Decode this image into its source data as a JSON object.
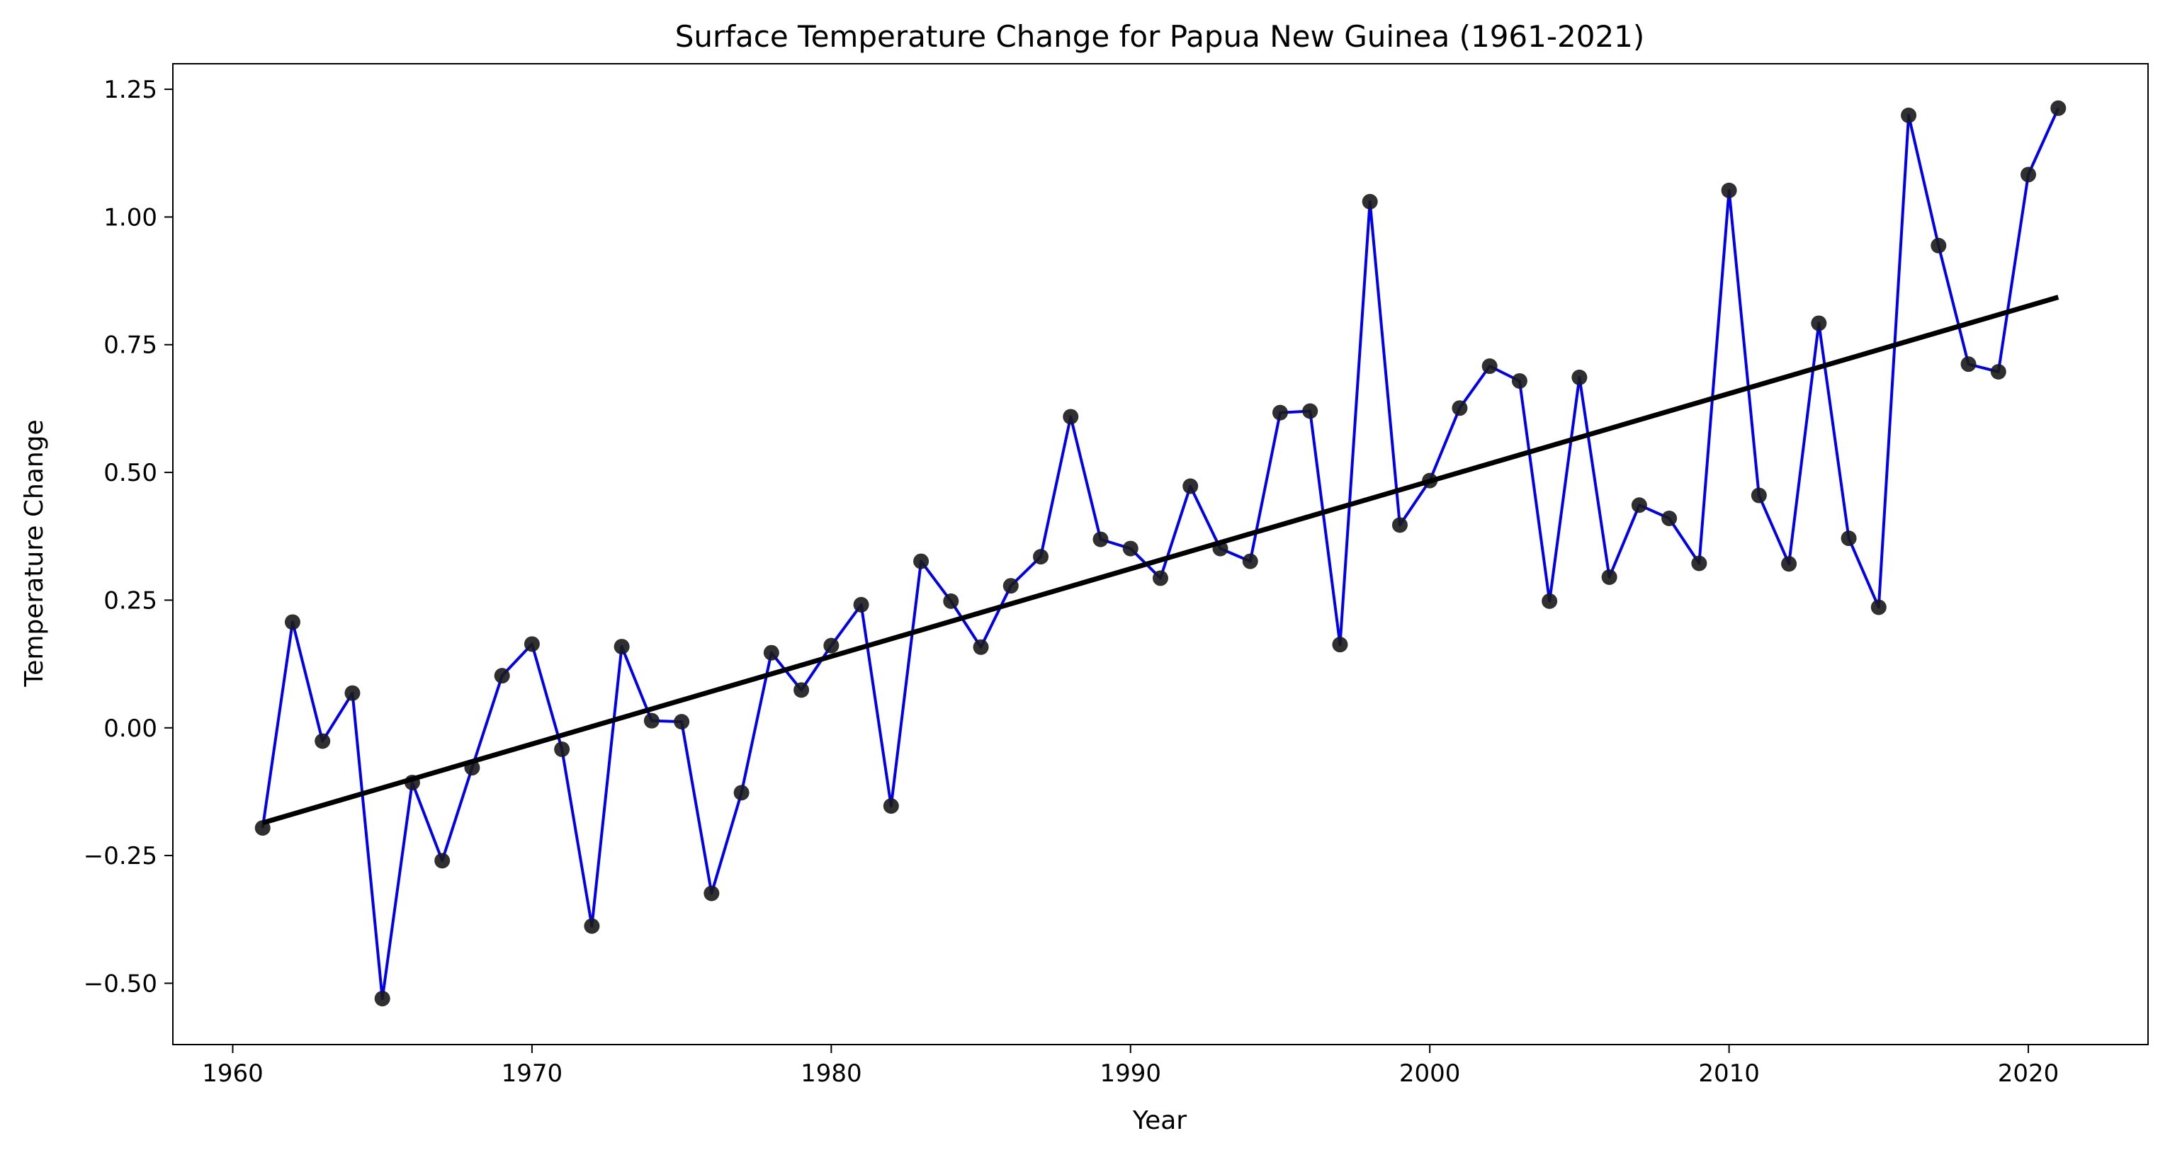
{
  "chart_data": {
    "type": "line",
    "title": "Surface Temperature Change for Papua New Guinea (1961-2021)",
    "xlabel": "Year",
    "ylabel": "Temperature Change",
    "xlim": [
      1958,
      2024
    ],
    "ylim": [
      -0.62,
      1.3
    ],
    "x_ticks": [
      1960,
      1970,
      1980,
      1990,
      2000,
      2010,
      2020
    ],
    "x_tick_labels": [
      "1960",
      "1970",
      "1980",
      "1990",
      "2000",
      "2010",
      "2020"
    ],
    "y_ticks": [
      -0.5,
      -0.25,
      0.0,
      0.25,
      0.5,
      0.75,
      1.0,
      1.25
    ],
    "y_tick_labels": [
      "−0.50",
      "−0.25",
      "0.00",
      "0.25",
      "0.50",
      "0.75",
      "1.00",
      "1.25"
    ],
    "grid": false,
    "legend": "none",
    "series": [
      {
        "color": "#0000ee",
        "marker_color": "#1a1a1a",
        "x": [
          1961,
          1962,
          1963,
          1964,
          1965,
          1966,
          1967,
          1968,
          1969,
          1970,
          1971,
          1972,
          1973,
          1974,
          1975,
          1976,
          1977,
          1978,
          1979,
          1980,
          1981,
          1982,
          1983,
          1984,
          1985,
          1986,
          1987,
          1988,
          1989,
          1990,
          1991,
          1992,
          1993,
          1994,
          1995,
          1996,
          1997,
          1998,
          1999,
          2000,
          2001,
          2002,
          2003,
          2004,
          2005,
          2006,
          2007,
          2008,
          2009,
          2010,
          2011,
          2012,
          2013,
          2014,
          2015,
          2016,
          2017,
          2018,
          2019,
          2020,
          2021
        ],
        "values": [
          -0.196,
          0.207,
          -0.026,
          0.068,
          -0.53,
          -0.107,
          -0.26,
          -0.078,
          0.102,
          0.164,
          -0.042,
          -0.388,
          0.159,
          0.014,
          0.012,
          -0.324,
          -0.127,
          0.147,
          0.074,
          0.161,
          0.241,
          -0.153,
          0.326,
          0.248,
          0.158,
          0.278,
          0.335,
          0.609,
          0.369,
          0.351,
          0.293,
          0.473,
          0.351,
          0.326,
          0.617,
          0.62,
          0.163,
          1.03,
          0.397,
          0.484,
          0.626,
          0.708,
          0.679,
          0.248,
          0.686,
          0.295,
          0.436,
          0.41,
          0.322,
          1.052,
          0.455,
          0.321,
          0.792,
          0.371,
          0.236,
          1.199,
          0.944,
          0.712,
          0.697,
          1.083,
          1.213
        ]
      }
    ],
    "trendline": {
      "color": "#000000",
      "x": [
        1961,
        2021
      ],
      "values": [
        -0.186,
        0.843
      ]
    }
  }
}
